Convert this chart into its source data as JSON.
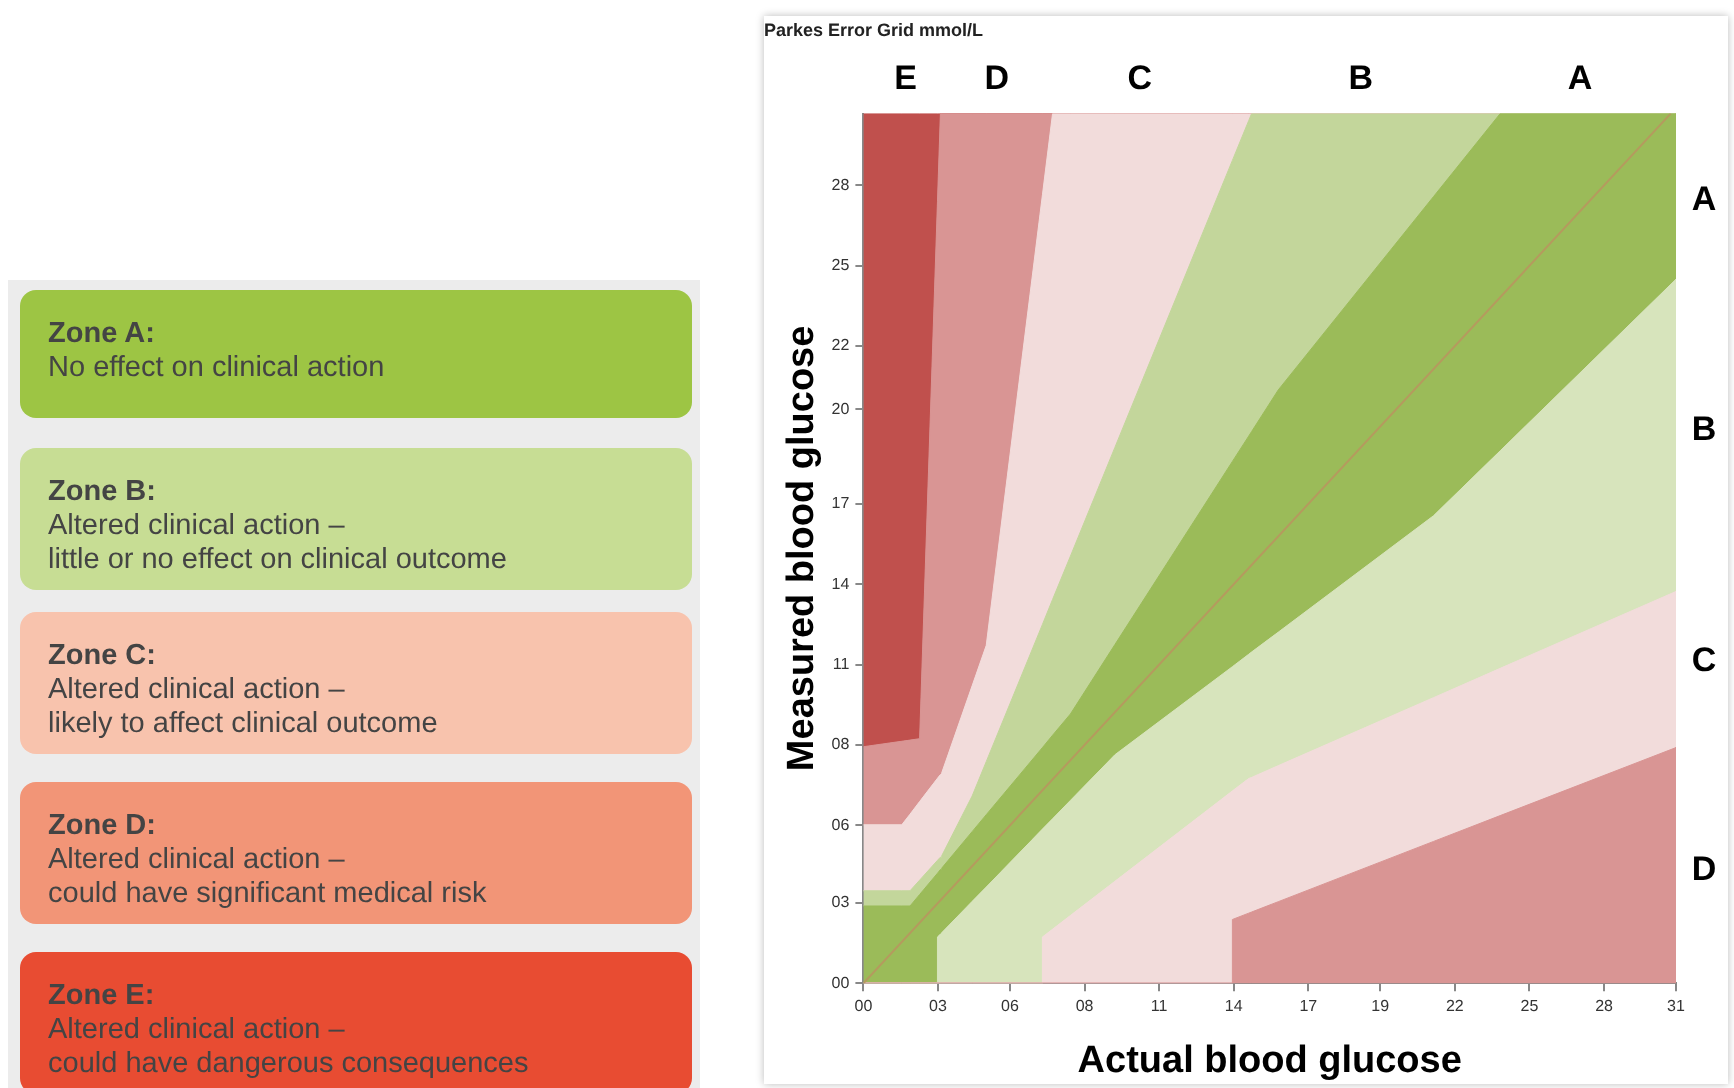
{
  "chart_data": {
    "type": "area",
    "stacked": true,
    "title": "Parkes Error Grid mmol/L",
    "xlabel": "Actual blood glucose",
    "ylabel": "Measured blood glucose",
    "xlim": [
      0,
      30.5
    ],
    "ylim": [
      0,
      30.3
    ],
    "xticks": [
      {
        "value": 0,
        "label": "00"
      },
      {
        "value": 2.8,
        "label": "03"
      },
      {
        "value": 5.5,
        "label": "06"
      },
      {
        "value": 8.3,
        "label": "08"
      },
      {
        "value": 11.1,
        "label": "11"
      },
      {
        "value": 13.9,
        "label": "14"
      },
      {
        "value": 16.7,
        "label": "17"
      },
      {
        "value": 19.4,
        "label": "19"
      },
      {
        "value": 22.2,
        "label": "22"
      },
      {
        "value": 25,
        "label": "25"
      },
      {
        "value": 27.8,
        "label": "28"
      },
      {
        "value": 30.5,
        "label": "31"
      }
    ],
    "yticks": [
      {
        "value": 0,
        "label": "00"
      },
      {
        "value": 2.8,
        "label": "03"
      },
      {
        "value": 5.5,
        "label": "06"
      },
      {
        "value": 8.3,
        "label": "08"
      },
      {
        "value": 11.1,
        "label": "11"
      },
      {
        "value": 13.9,
        "label": "14"
      },
      {
        "value": 16.7,
        "label": "17"
      },
      20,
      {
        "value": 22.2,
        "label": "22"
      },
      {
        "value": 25,
        "label": "25"
      },
      {
        "value": 27.8,
        "label": "28"
      }
    ],
    "x": [
      0,
      1.44,
      1.75,
      2.11,
      2.78,
      2.78,
      2.89,
      2.94,
      4.08,
      4.61,
      6.72,
      6.72,
      7.1,
      7.77,
      9.44,
      13.85,
      13.85,
      14.46,
      14.57,
      15.57,
      21.4,
      23.9,
      30.5
    ],
    "series": [
      {
        "color": "#d99594",
        "values": [
          0,
          0,
          0,
          0,
          0,
          0,
          0,
          0,
          0,
          0,
          0,
          0,
          0,
          0,
          0,
          0,
          2.22,
          2.44,
          2.48,
          2.84,
          4.94,
          5.84,
          8.21
        ]
      },
      {
        "color": "#f2dcdb",
        "values": [
          0,
          0,
          0,
          0,
          0,
          0,
          0,
          0,
          0,
          0,
          0,
          1.61,
          1.88,
          2.36,
          3.55,
          6.7,
          4.48,
          4.69,
          4.69,
          4.74,
          5.01,
          5.13,
          5.44
        ]
      },
      {
        "color": "#d7e4bc",
        "values": [
          0,
          0,
          0,
          0,
          0,
          1.61,
          1.71,
          1.76,
          2.85,
          3.35,
          5.37,
          3.76,
          3.85,
          4.01,
          4.41,
          4.33,
          4.33,
          4.33,
          4.37,
          4.65,
          6.34,
          7.58,
          10.88
        ]
      },
      {
        "color": "#9bbb59",
        "values": [
          2.69,
          2.69,
          2.69,
          3.09,
          3.83,
          2.22,
          2.25,
          2.25,
          2.43,
          2.52,
          2.84,
          2.84,
          2.91,
          3.01,
          3.84,
          7.15,
          7.15,
          7.6,
          7.68,
          8.44,
          11.12,
          11.75,
          5.77
        ]
      },
      {
        "color": "#c3d69b",
        "values": [
          0.53,
          0.53,
          0.53,
          0.5,
          0.45,
          0.45,
          0.43,
          0.43,
          1.24,
          1.85,
          4.29,
          4.29,
          4.73,
          5.5,
          6.87,
          10.49,
          10.49,
          10.99,
          11.08,
          9.63,
          2.89,
          0,
          0
        ]
      },
      {
        "color": "#f2dcdb",
        "values": [
          2.3,
          2.3,
          2.67,
          2.74,
          2.86,
          2.86,
          2.88,
          2.89,
          3.84,
          4.05,
          14.97,
          14.97,
          16.93,
          15.42,
          11.63,
          1.63,
          1.63,
          0.25,
          0,
          0,
          0,
          0,
          0
        ]
      },
      {
        "color": "#d99594",
        "values": [
          2.72,
          2.91,
          2.58,
          2.19,
          20.09,
          20.09,
          23.03,
          22.97,
          19.94,
          18.53,
          2.83,
          2.83,
          0,
          0,
          0,
          0,
          0,
          0,
          0,
          0,
          0,
          0,
          0
        ]
      },
      {
        "color": "#c0504d",
        "values": [
          22.06,
          21.87,
          21.83,
          21.78,
          3.07,
          3.07,
          0,
          0,
          0,
          0,
          0,
          0,
          0,
          0,
          0,
          0,
          0,
          0,
          0,
          0,
          0,
          0,
          0
        ]
      },
      {
        "type": "line",
        "color": "#b59a5e",
        "x": [
          0,
          30.3
        ],
        "values": [
          0,
          30.3
        ]
      }
    ],
    "annotations": [
      "Zone A:\nNo effect on clinical action",
      "Zone B:\nAltered clinical action –\nlittle or no effect on clinical outcome",
      "Zone C:\nAltered clinical action –\nlikely to affect clinical outcome",
      "Zone D:\nAltered clinical action –\ncould have significant medical risk",
      "Zone E:\nAltered clinical action –\ncould have dangerous consequences",
      "E",
      "D",
      "C",
      "B",
      "A",
      "A",
      "B",
      "C",
      "D"
    ]
  }
}
